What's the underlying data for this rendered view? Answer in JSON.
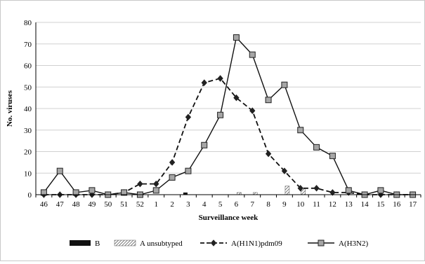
{
  "chart_data": {
    "type": "line",
    "title": "",
    "xlabel": "Surveillance week",
    "ylabel": "No. viruses",
    "ylim": [
      0,
      80
    ],
    "yticks": [
      0,
      10,
      20,
      30,
      40,
      50,
      60,
      70,
      80
    ],
    "grid": "horizontal",
    "legend_position": "bottom",
    "categories": [
      "46",
      "47",
      "48",
      "49",
      "50",
      "51",
      "52",
      "1",
      "2",
      "3",
      "4",
      "5",
      "6",
      "7",
      "8",
      "9",
      "10",
      "11",
      "12",
      "13",
      "14",
      "15",
      "16",
      "17"
    ],
    "series": [
      {
        "name": "B",
        "type": "bar",
        "fill": "solid",
        "color": "#111111",
        "values": [
          0,
          0,
          0,
          0,
          0,
          0,
          0,
          0,
          0,
          1,
          0,
          0,
          0,
          0,
          0,
          0,
          0,
          0,
          0,
          0,
          0,
          0,
          0,
          0
        ]
      },
      {
        "name": "A unsubtyped",
        "type": "bar",
        "fill": "hatched",
        "color": "#555555",
        "values": [
          0,
          0,
          0,
          0,
          0,
          0,
          0,
          0,
          0,
          0,
          0,
          0,
          1,
          1,
          0,
          4,
          3,
          0,
          0,
          0,
          0,
          0,
          0,
          0
        ]
      },
      {
        "name": "A(H1N1)pdm09",
        "type": "line",
        "line_style": "dashed",
        "marker": "diamond",
        "color": "#111111",
        "values": [
          0,
          0,
          0,
          0,
          0,
          1,
          5,
          5,
          15,
          36,
          52,
          54,
          45,
          39,
          19,
          11,
          3,
          3,
          1,
          1,
          0,
          0,
          0,
          0
        ]
      },
      {
        "name": "A(H3N2)",
        "type": "line",
        "line_style": "solid",
        "marker": "square",
        "color": "#111111",
        "marker_fill": "#a6a6a6",
        "values": [
          1,
          11,
          1,
          2,
          0,
          1,
          0,
          2,
          8,
          11,
          23,
          37,
          73,
          65,
          44,
          51,
          30,
          22,
          18,
          2,
          0,
          2,
          0,
          0
        ]
      }
    ]
  }
}
